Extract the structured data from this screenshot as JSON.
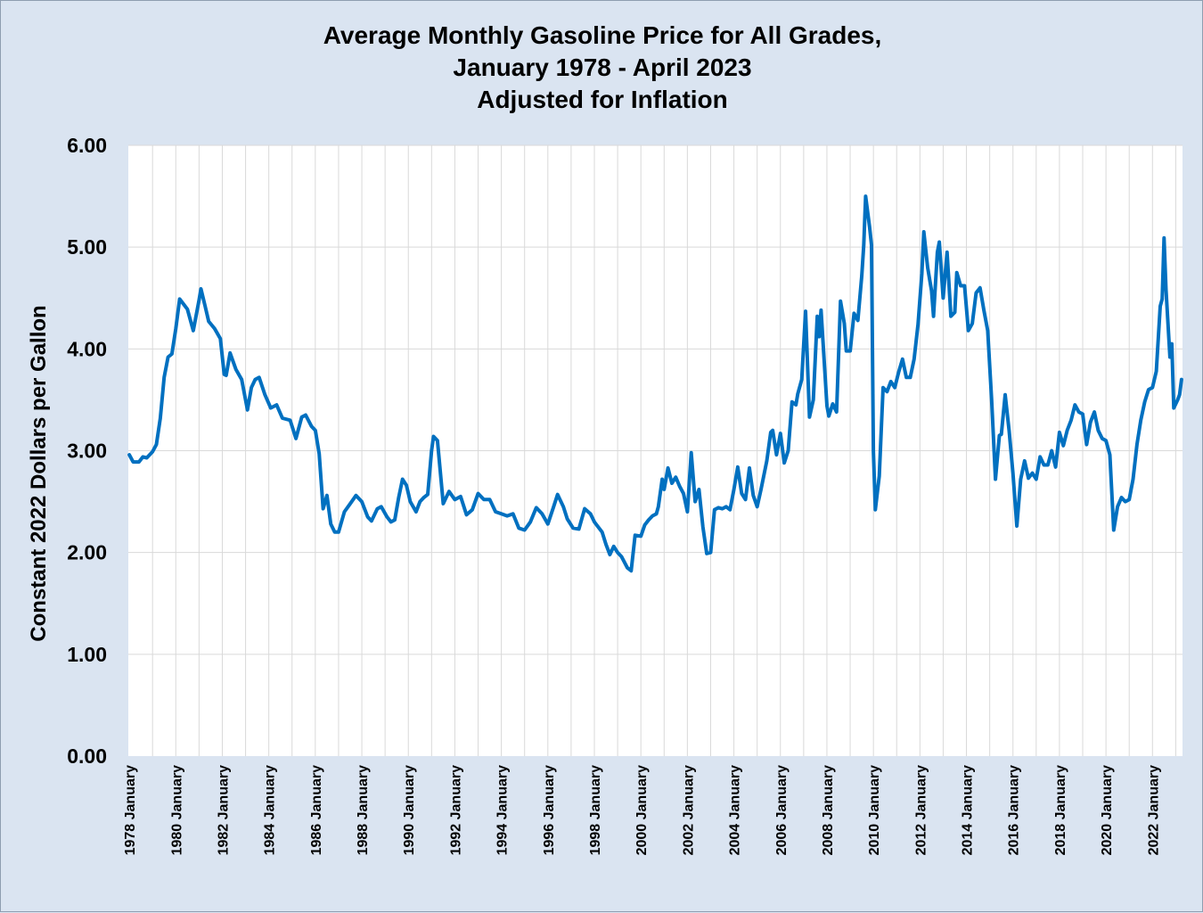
{
  "chart_data": {
    "type": "line",
    "title": "Average Monthly Gasoline Price for All Grades,",
    "subtitle_lines": [
      "January 1978 - April 2023",
      "Adjusted for Inflation"
    ],
    "xlabel": "",
    "ylabel": "Constant 2022 Dollars per Gallon",
    "ylim": [
      0,
      6
    ],
    "y_ticks": [
      "0.00",
      "1.00",
      "2.00",
      "3.00",
      "4.00",
      "5.00",
      "6.00"
    ],
    "x_tick_labels": [
      "1978 January",
      "1980 January",
      "1982 January",
      "1984 January",
      "1986 January",
      "1988 January",
      "1990 January",
      "1992 January",
      "1994 January",
      "1996 January",
      "1998 January",
      "2000 January",
      "2002 January",
      "2004 January",
      "2006 January",
      "2008 January",
      "2010 January",
      "2012 January",
      "2014 January",
      "2016 January",
      "2018 January",
      "2020 January",
      "2022 January"
    ],
    "x_range": [
      "1978-01",
      "2023-04"
    ],
    "grid": true,
    "line_color": "#0070c0",
    "series": [
      {
        "points": [
          [
            "1978-01",
            2.96
          ],
          [
            "1978-03",
            2.89
          ],
          [
            "1978-06",
            2.89
          ],
          [
            "1978-08",
            2.94
          ],
          [
            "1978-10",
            2.93
          ],
          [
            "1979-01",
            2.99
          ],
          [
            "1979-03",
            3.06
          ],
          [
            "1979-05",
            3.32
          ],
          [
            "1979-07",
            3.72
          ],
          [
            "1979-09",
            3.92
          ],
          [
            "1979-11",
            3.95
          ],
          [
            "1980-01",
            4.2
          ],
          [
            "1980-03",
            4.49
          ],
          [
            "1980-05",
            4.44
          ],
          [
            "1980-07",
            4.39
          ],
          [
            "1980-10",
            4.18
          ],
          [
            "1981-01",
            4.48
          ],
          [
            "1981-02",
            4.59
          ],
          [
            "1981-04",
            4.43
          ],
          [
            "1981-06",
            4.27
          ],
          [
            "1981-09",
            4.2
          ],
          [
            "1981-12",
            4.1
          ],
          [
            "1982-02",
            3.75
          ],
          [
            "1982-03",
            3.74
          ],
          [
            "1982-05",
            3.96
          ],
          [
            "1982-08",
            3.8
          ],
          [
            "1982-11",
            3.7
          ],
          [
            "1983-02",
            3.4
          ],
          [
            "1983-04",
            3.62
          ],
          [
            "1983-06",
            3.7
          ],
          [
            "1983-08",
            3.72
          ],
          [
            "1983-11",
            3.55
          ],
          [
            "1984-02",
            3.42
          ],
          [
            "1984-05",
            3.45
          ],
          [
            "1984-08",
            3.32
          ],
          [
            "1984-12",
            3.3
          ],
          [
            "1985-03",
            3.12
          ],
          [
            "1985-06",
            3.33
          ],
          [
            "1985-08",
            3.35
          ],
          [
            "1985-11",
            3.24
          ],
          [
            "1986-01",
            3.2
          ],
          [
            "1986-03",
            2.97
          ],
          [
            "1986-05",
            2.43
          ],
          [
            "1986-07",
            2.56
          ],
          [
            "1986-09",
            2.28
          ],
          [
            "1986-11",
            2.2
          ],
          [
            "1987-01",
            2.2
          ],
          [
            "1987-04",
            2.4
          ],
          [
            "1987-07",
            2.48
          ],
          [
            "1987-10",
            2.56
          ],
          [
            "1988-01",
            2.5
          ],
          [
            "1988-04",
            2.35
          ],
          [
            "1988-06",
            2.31
          ],
          [
            "1988-09",
            2.43
          ],
          [
            "1988-11",
            2.45
          ],
          [
            "1989-02",
            2.35
          ],
          [
            "1989-04",
            2.3
          ],
          [
            "1989-06",
            2.32
          ],
          [
            "1989-08",
            2.54
          ],
          [
            "1989-10",
            2.72
          ],
          [
            "1989-12",
            2.66
          ],
          [
            "1990-02",
            2.5
          ],
          [
            "1990-05",
            2.4
          ],
          [
            "1990-07",
            2.5
          ],
          [
            "1990-09",
            2.54
          ],
          [
            "1990-11",
            2.57
          ],
          [
            "1991-01",
            3.0
          ],
          [
            "1991-02",
            3.14
          ],
          [
            "1991-04",
            3.1
          ],
          [
            "1991-07",
            2.48
          ],
          [
            "1991-10",
            2.6
          ],
          [
            "1992-01",
            2.52
          ],
          [
            "1992-04",
            2.55
          ],
          [
            "1992-07",
            2.37
          ],
          [
            "1992-10",
            2.42
          ],
          [
            "1993-01",
            2.58
          ],
          [
            "1993-04",
            2.52
          ],
          [
            "1993-07",
            2.52
          ],
          [
            "1993-10",
            2.4
          ],
          [
            "1994-01",
            2.38
          ],
          [
            "1994-04",
            2.36
          ],
          [
            "1994-07",
            2.38
          ],
          [
            "1994-10",
            2.24
          ],
          [
            "1995-01",
            2.22
          ],
          [
            "1995-04",
            2.3
          ],
          [
            "1995-07",
            2.44
          ],
          [
            "1995-10",
            2.38
          ],
          [
            "1996-01",
            2.28
          ],
          [
            "1996-04",
            2.45
          ],
          [
            "1996-06",
            2.57
          ],
          [
            "1996-09",
            2.45
          ],
          [
            "1996-11",
            2.33
          ],
          [
            "1997-02",
            2.24
          ],
          [
            "1997-05",
            2.23
          ],
          [
            "1997-08",
            2.43
          ],
          [
            "1997-11",
            2.38
          ],
          [
            "1998-01",
            2.3
          ],
          [
            "1998-03",
            2.25
          ],
          [
            "1998-05",
            2.2
          ],
          [
            "1998-07",
            2.08
          ],
          [
            "1998-09",
            1.98
          ],
          [
            "1998-11",
            2.06
          ],
          [
            "1999-01",
            2.0
          ],
          [
            "1999-03",
            1.96
          ],
          [
            "1999-06",
            1.85
          ],
          [
            "1999-08",
            1.82
          ],
          [
            "1999-10",
            2.17
          ],
          [
            "2000-01",
            2.16
          ],
          [
            "2000-03",
            2.27
          ],
          [
            "2000-05",
            2.32
          ],
          [
            "2000-07",
            2.36
          ],
          [
            "2000-09",
            2.38
          ],
          [
            "2000-10",
            2.45
          ],
          [
            "2000-12",
            2.72
          ],
          [
            "2001-01",
            2.62
          ],
          [
            "2001-03",
            2.83
          ],
          [
            "2001-05",
            2.68
          ],
          [
            "2001-07",
            2.74
          ],
          [
            "2001-09",
            2.65
          ],
          [
            "2001-11",
            2.58
          ],
          [
            "2002-01",
            2.4
          ],
          [
            "2002-03",
            2.98
          ],
          [
            "2002-05",
            2.5
          ],
          [
            "2002-07",
            2.62
          ],
          [
            "2002-09",
            2.25
          ],
          [
            "2002-11",
            1.99
          ],
          [
            "2003-01",
            2.0
          ],
          [
            "2003-03",
            2.42
          ],
          [
            "2003-05",
            2.44
          ],
          [
            "2003-07",
            2.43
          ],
          [
            "2003-09",
            2.45
          ],
          [
            "2003-11",
            2.42
          ],
          [
            "2004-01",
            2.62
          ],
          [
            "2004-03",
            2.84
          ],
          [
            "2004-05",
            2.58
          ],
          [
            "2004-07",
            2.52
          ],
          [
            "2004-09",
            2.83
          ],
          [
            "2004-11",
            2.56
          ],
          [
            "2005-01",
            2.45
          ],
          [
            "2005-03",
            2.62
          ],
          [
            "2005-06",
            2.9
          ],
          [
            "2005-08",
            3.18
          ],
          [
            "2005-09",
            3.2
          ],
          [
            "2005-11",
            2.96
          ],
          [
            "2006-01",
            3.17
          ],
          [
            "2006-03",
            2.88
          ],
          [
            "2006-05",
            3.0
          ],
          [
            "2006-07",
            3.48
          ],
          [
            "2006-09",
            3.45
          ],
          [
            "2006-10",
            3.56
          ],
          [
            "2006-12",
            3.7
          ],
          [
            "2007-02",
            4.37
          ],
          [
            "2007-04",
            3.33
          ],
          [
            "2007-06",
            3.5
          ],
          [
            "2007-08",
            4.32
          ],
          [
            "2007-09",
            4.12
          ],
          [
            "2007-10",
            4.38
          ],
          [
            "2008-01",
            3.44
          ],
          [
            "2008-02",
            3.34
          ],
          [
            "2008-04",
            3.46
          ],
          [
            "2008-06",
            3.38
          ],
          [
            "2008-08",
            4.47
          ],
          [
            "2008-10",
            4.25
          ],
          [
            "2008-11",
            3.98
          ],
          [
            "2009-01",
            3.98
          ],
          [
            "2009-03",
            4.35
          ],
          [
            "2009-05",
            4.28
          ],
          [
            "2009-07",
            4.72
          ],
          [
            "2009-08",
            5.02
          ],
          [
            "2009-09",
            5.5
          ],
          [
            "2009-11",
            5.2
          ],
          [
            "2009-12",
            5.02
          ],
          [
            "2010-01",
            3.0
          ],
          [
            "2010-02",
            2.42
          ],
          [
            "2010-04",
            2.75
          ],
          [
            "2010-06",
            3.62
          ],
          [
            "2010-08",
            3.58
          ],
          [
            "2010-10",
            3.68
          ],
          [
            "2010-12",
            3.62
          ],
          [
            "2011-02",
            3.77
          ],
          [
            "2011-04",
            3.9
          ],
          [
            "2011-06",
            3.72
          ],
          [
            "2011-08",
            3.72
          ],
          [
            "2011-10",
            3.9
          ],
          [
            "2011-12",
            4.24
          ],
          [
            "2012-02",
            4.74
          ],
          [
            "2012-03",
            5.15
          ],
          [
            "2012-05",
            4.8
          ],
          [
            "2012-07",
            4.57
          ],
          [
            "2012-08",
            4.32
          ],
          [
            "2012-10",
            4.95
          ],
          [
            "2012-11",
            5.05
          ],
          [
            "2013-01",
            4.5
          ],
          [
            "2013-03",
            4.95
          ],
          [
            "2013-05",
            4.32
          ],
          [
            "2013-07",
            4.36
          ],
          [
            "2013-08",
            4.75
          ],
          [
            "2013-10",
            4.62
          ],
          [
            "2013-12",
            4.62
          ],
          [
            "2014-02",
            4.18
          ],
          [
            "2014-04",
            4.25
          ],
          [
            "2014-06",
            4.55
          ],
          [
            "2014-08",
            4.6
          ],
          [
            "2014-10",
            4.38
          ],
          [
            "2014-12",
            4.18
          ],
          [
            "2015-02",
            3.5
          ],
          [
            "2015-04",
            2.72
          ],
          [
            "2015-06",
            3.15
          ],
          [
            "2015-07",
            3.16
          ],
          [
            "2015-09",
            3.55
          ],
          [
            "2015-11",
            3.2
          ],
          [
            "2016-01",
            2.78
          ],
          [
            "2016-03",
            2.26
          ],
          [
            "2016-05",
            2.72
          ],
          [
            "2016-07",
            2.9
          ],
          [
            "2016-09",
            2.73
          ],
          [
            "2016-11",
            2.78
          ],
          [
            "2017-01",
            2.72
          ],
          [
            "2017-03",
            2.94
          ],
          [
            "2017-05",
            2.86
          ],
          [
            "2017-07",
            2.86
          ],
          [
            "2017-09",
            3.0
          ],
          [
            "2017-11",
            2.84
          ],
          [
            "2018-01",
            3.18
          ],
          [
            "2018-03",
            3.05
          ],
          [
            "2018-05",
            3.2
          ],
          [
            "2018-07",
            3.3
          ],
          [
            "2018-09",
            3.45
          ],
          [
            "2018-11",
            3.38
          ],
          [
            "2019-01",
            3.36
          ],
          [
            "2019-03",
            3.06
          ],
          [
            "2019-05",
            3.28
          ],
          [
            "2019-07",
            3.38
          ],
          [
            "2019-09",
            3.2
          ],
          [
            "2019-11",
            3.12
          ],
          [
            "2020-01",
            3.1
          ],
          [
            "2020-03",
            2.96
          ],
          [
            "2020-05",
            2.22
          ],
          [
            "2020-07",
            2.45
          ],
          [
            "2020-09",
            2.54
          ],
          [
            "2020-11",
            2.5
          ],
          [
            "2021-01",
            2.52
          ],
          [
            "2021-03",
            2.72
          ],
          [
            "2021-05",
            3.06
          ],
          [
            "2021-07",
            3.3
          ],
          [
            "2021-09",
            3.48
          ],
          [
            "2021-11",
            3.6
          ],
          [
            "2022-01",
            3.62
          ],
          [
            "2022-03",
            3.78
          ],
          [
            "2022-05",
            4.42
          ],
          [
            "2022-06",
            4.49
          ],
          [
            "2022-07",
            5.09
          ],
          [
            "2022-08",
            4.58
          ],
          [
            "2022-10",
            3.92
          ],
          [
            "2022-11",
            4.05
          ],
          [
            "2022-12",
            3.42
          ],
          [
            "2023-02",
            3.5
          ],
          [
            "2023-03",
            3.55
          ],
          [
            "2023-04",
            3.7
          ]
        ]
      }
    ]
  }
}
